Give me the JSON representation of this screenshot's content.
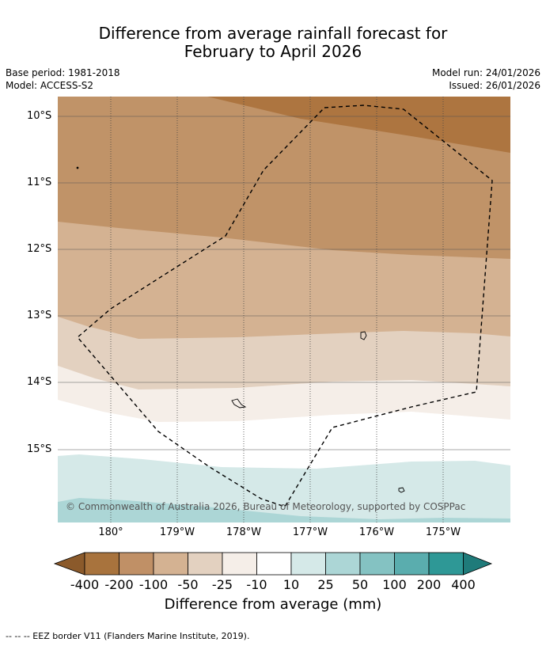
{
  "title_line1": "Difference from average rainfall forecast for",
  "title_line2": "February to April 2026",
  "base_period": "Base period: 1981-2018",
  "model": "Model: ACCESS-S2",
  "model_run": "Model run: 24/01/2026",
  "issued": "Issued: 26/01/2026",
  "lat_labels": [
    "10°S",
    "11°S",
    "12°S",
    "13°S",
    "14°S",
    "15°S"
  ],
  "lon_labels": [
    "180°",
    "179°W",
    "178°W",
    "177°W",
    "176°W",
    "175°W"
  ],
  "copyright": "© Commonwealth of Australia 2026, Bureau of Meteorology, supported by COSPPac",
  "colorbar": {
    "labels": [
      "-400",
      "-200",
      "-100",
      "-50",
      "-25",
      "-10",
      "10",
      "25",
      "50",
      "100",
      "200",
      "400"
    ],
    "title": "Difference from average (mm)",
    "colors": [
      "#8b5a2b",
      "#a8733d",
      "#c09066",
      "#d4b292",
      "#e3d1c0",
      "#f5eee8",
      "#ffffff",
      "#d5e9e8",
      "#acd6d6",
      "#84c2c2",
      "#5aadae",
      "#2e9896",
      "#1f7b7a"
    ]
  },
  "footnote": "--  --  -- EEZ border V11 (Flanders Marine Institute, 2019).",
  "colors": {
    "band_neg200": "#ad7540",
    "band_neg100": "#c09368",
    "band_neg50": "#d4b292",
    "band_neg25": "#e3d1c0",
    "band_neg10": "#f5eee8",
    "band_pos10": "#ffffff",
    "band_pos25": "#d5e9e8",
    "band_pos50": "#acd6d6"
  }
}
